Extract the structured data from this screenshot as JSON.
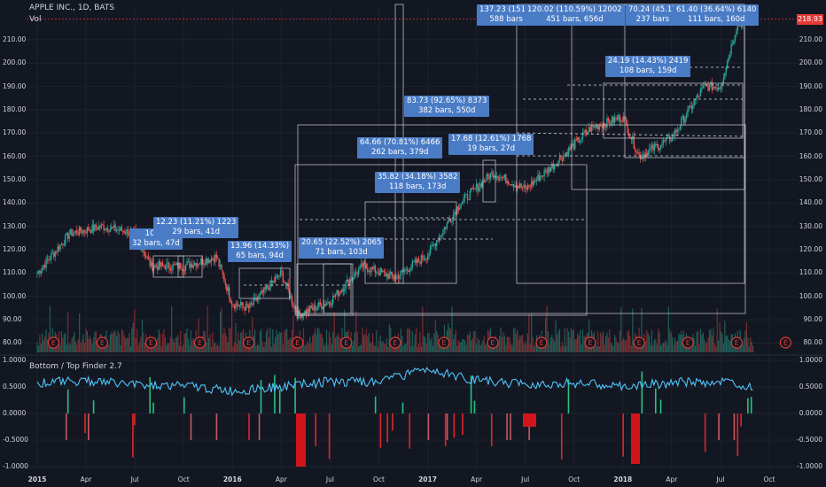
{
  "header": {
    "symbol": "APPLE INC., 1D, BATS",
    "vol_label": "Vol"
  },
  "last_price": "218.93",
  "indicator": {
    "title": "Bottom / Top Finder 2.7"
  },
  "colors": {
    "background": "#131722",
    "up": "#26a69a",
    "down": "#ef5350",
    "indicator_line": "#4fc3f7",
    "measure_box": "#4a7cc6",
    "price_line": "#e53935"
  },
  "measures": [
    {
      "line1": "10.05",
      "line2": "32 bars, 47d"
    },
    {
      "line1": "12.23 (11.21%) 1223",
      "line2": "29 bars, 41d"
    },
    {
      "line1": "13.96 (14.33%)",
      "line2": "65 bars, 94d"
    },
    {
      "line1": "20.65 (22.52%) 2065",
      "line2": "71 bars, 103d"
    },
    {
      "line1": "35.82 (34.18%) 3582",
      "line2": "118 bars, 173d"
    },
    {
      "line1": "64.66 (70.81%) 6466",
      "line2": "262 bars, 379d"
    },
    {
      "line1": "83.73 (92.65%) 8373",
      "line2": "382 bars, 550d"
    },
    {
      "line1": "17.68 (12.61%) 1768",
      "line2": "19 bars, 27d"
    },
    {
      "line1": "137.23 (151.6",
      "line2": "588 bars"
    },
    {
      "line1": "120.02 (110.59%) 12002",
      "line2": "451 bars, 656d"
    },
    {
      "line1": "70.24 (45.17",
      "line2": "237 bars"
    },
    {
      "line1": "61.40 (36.64%) 6140",
      "line2": "111 bars, 160d"
    },
    {
      "line1": "24.19 (14.43%) 2419",
      "line2": "108 bars, 159d"
    }
  ],
  "chart_data": [
    {
      "type": "line",
      "title": "APPLE INC., 1D, BATS",
      "xlabel": "",
      "ylabel": "",
      "x_ticks": [
        "2015",
        "Apr",
        "Jul",
        "Oct",
        "2016",
        "Apr",
        "Jul",
        "Oct",
        "2017",
        "Apr",
        "Jul",
        "Oct",
        "2018",
        "Apr",
        "Jul",
        "Oct"
      ],
      "y_ticks": [
        80,
        90,
        100,
        110,
        120,
        130,
        140,
        150,
        160,
        170,
        180,
        190,
        200,
        210
      ],
      "ylim": [
        76,
        224
      ],
      "last_value": 218.93,
      "grid": true,
      "series": [
        {
          "name": "",
          "x": [
            "2015-01",
            "2015-03",
            "2015-05",
            "2015-07",
            "2015-08",
            "2015-10",
            "2015-12",
            "2016-01",
            "2016-02",
            "2016-04",
            "2016-05",
            "2016-07",
            "2016-09",
            "2016-11",
            "2017-01",
            "2017-03",
            "2017-05",
            "2017-07",
            "2017-09",
            "2017-11",
            "2018-01",
            "2018-02",
            "2018-04",
            "2018-06",
            "2018-07",
            "2018-08",
            "2018-09"
          ],
          "values": [
            110,
            127,
            130,
            127,
            113,
            113,
            117,
            97,
            95,
            110,
            92,
            98,
            113,
            108,
            118,
            140,
            153,
            146,
            158,
            172,
            177,
            160,
            168,
            190,
            190,
            216,
            220
          ]
        }
      ]
    },
    {
      "type": "area",
      "title": "Bottom / Top Finder 2.7",
      "y_ticks": [
        1.0,
        0.5,
        0.0,
        -0.5,
        -1.0
      ],
      "y_tick_labels": [
        "1.0000",
        "0.5000",
        "0.0000",
        "-0.5000",
        "-1.0000"
      ],
      "ylim": [
        -1.05,
        1.05
      ],
      "series": [
        {
          "name": "",
          "x": [
            "2015-01",
            "2015-04",
            "2015-07",
            "2015-10",
            "2016-01",
            "2016-04",
            "2016-07",
            "2016-10",
            "2017-01",
            "2017-04",
            "2017-07",
            "2017-10",
            "2018-01",
            "2018-04",
            "2018-07",
            "2018-09"
          ],
          "values": [
            0.58,
            0.62,
            0.55,
            0.52,
            0.42,
            0.5,
            0.6,
            0.58,
            0.85,
            0.62,
            0.55,
            0.58,
            0.5,
            0.58,
            0.6,
            0.52
          ]
        }
      ]
    }
  ],
  "x_labels_bold": [
    "2015",
    "2016",
    "2017",
    "2018"
  ],
  "earnings_marker": "E"
}
